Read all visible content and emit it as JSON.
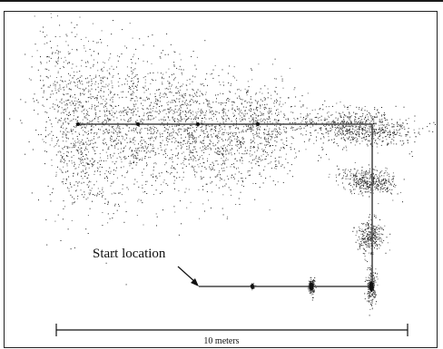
{
  "figure": {
    "start_label": "Start location",
    "scale_label": "10 meters",
    "ink_color": "#111111",
    "path_color": "#444444"
  },
  "path": {
    "description_points_order": "start -> east along bottom -> north along right -> west along top",
    "pose_count": 11
  }
}
